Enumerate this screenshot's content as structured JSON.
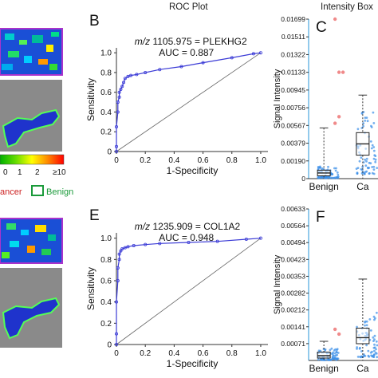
{
  "headers": {
    "roc": "ROC Plot",
    "box": "Intensity Box"
  },
  "panels": {
    "b": "B",
    "c": "C",
    "e": "E",
    "f": "F"
  },
  "colorbar": {
    "ticks": [
      "0",
      "1",
      "2",
      "≥10"
    ],
    "colors": [
      "#00c000",
      "#55dd00",
      "#ffff00",
      "#ff8800",
      "#ff0000"
    ]
  },
  "legend": {
    "cancer_label": "ancer",
    "benign_label": "Benign",
    "cancer_color": "#cc2222",
    "benign_color": "#1a9a3a"
  },
  "chart_data": [
    {
      "type": "line",
      "panel": "B",
      "title": "m/z 1105.975 = PLEKHG2",
      "auc_text": "AUC = 0.887",
      "xlabel": "1-Specificity",
      "ylabel": "Sensitivity",
      "xlim": [
        0,
        1.05
      ],
      "ylim": [
        0,
        1.05
      ],
      "xticks": [
        "0",
        "0.2",
        "0.4",
        "0.6",
        "0.8",
        "1.0"
      ],
      "yticks": [
        "0",
        "0.2",
        "0.4",
        "0.6",
        "0.8",
        "1.0"
      ],
      "roc": {
        "x": [
          0,
          0.0,
          0.0,
          0.01,
          0.01,
          0.02,
          0.02,
          0.03,
          0.04,
          0.05,
          0.06,
          0.08,
          0.1,
          0.14,
          0.2,
          0.3,
          0.45,
          0.6,
          0.8,
          0.95,
          1.0
        ],
        "y": [
          0,
          0.05,
          0.25,
          0.4,
          0.5,
          0.55,
          0.6,
          0.63,
          0.66,
          0.7,
          0.74,
          0.76,
          0.77,
          0.78,
          0.8,
          0.83,
          0.86,
          0.9,
          0.95,
          0.99,
          1.0
        ]
      },
      "diagonal": true
    },
    {
      "type": "box",
      "panel": "C",
      "ylabel": "Signal Intensity",
      "categories": [
        "Benign",
        "Ca"
      ],
      "yticks": [
        "0",
        "0.00190",
        "0.00379",
        "0.00567",
        "0.00756",
        "0.00945",
        "0.01133",
        "0.01322",
        "0.01511",
        "0.01699"
      ],
      "ylim": [
        0,
        0.01699
      ],
      "boxes": [
        {
          "min": 0.0,
          "q1": 0.0003,
          "median": 0.0006,
          "q3": 0.0009,
          "max": 0.0054
        },
        {
          "min": 0.0,
          "q1": 0.0025,
          "median": 0.0037,
          "q3": 0.0049,
          "max": 0.0089
        }
      ],
      "outliers": [
        0.01699,
        0.01133,
        0.01133,
        0.0059,
        0.0066
      ]
    },
    {
      "type": "line",
      "panel": "E",
      "title": "m/z 1235.909 = COL1A2",
      "auc_text": "AUC = 0.948",
      "xlabel": "1-Specificity",
      "ylabel": "Sensitivity",
      "xlim": [
        0,
        1.05
      ],
      "ylim": [
        0,
        1.05
      ],
      "xticks": [
        "0",
        "0.2",
        "0.4",
        "0.6",
        "0.8",
        "1.0"
      ],
      "yticks": [
        "0",
        "0.2",
        "0.4",
        "0.6",
        "0.8",
        "1.0"
      ],
      "roc": {
        "x": [
          0,
          0.0,
          0.0,
          0.01,
          0.01,
          0.02,
          0.02,
          0.03,
          0.04,
          0.06,
          0.08,
          0.12,
          0.2,
          0.3,
          0.5,
          0.7,
          0.9,
          1.0
        ],
        "y": [
          0,
          0.1,
          0.4,
          0.6,
          0.72,
          0.8,
          0.85,
          0.88,
          0.9,
          0.91,
          0.92,
          0.93,
          0.94,
          0.95,
          0.96,
          0.97,
          0.99,
          1.0
        ]
      },
      "diagonal": true
    },
    {
      "type": "box",
      "panel": "F",
      "ylabel": "Signal Intensity",
      "categories": [
        "Benign",
        "Ca"
      ],
      "yticks": [
        "0.00071",
        "0.00141",
        "0.00212",
        "0.00282",
        "0.00353",
        "0.00423",
        "0.00494",
        "0.00564",
        "0.00633"
      ],
      "ylim": [
        0,
        0.00633
      ],
      "boxes": [
        {
          "min": 0.0,
          "q1": 0.0001,
          "median": 0.0002,
          "q3": 0.00035,
          "max": 0.0008
        },
        {
          "min": 0.0,
          "q1": 0.0007,
          "median": 0.00095,
          "q3": 0.00135,
          "max": 0.0034
        }
      ],
      "outliers": [
        0.0013,
        0.0011
      ]
    }
  ]
}
